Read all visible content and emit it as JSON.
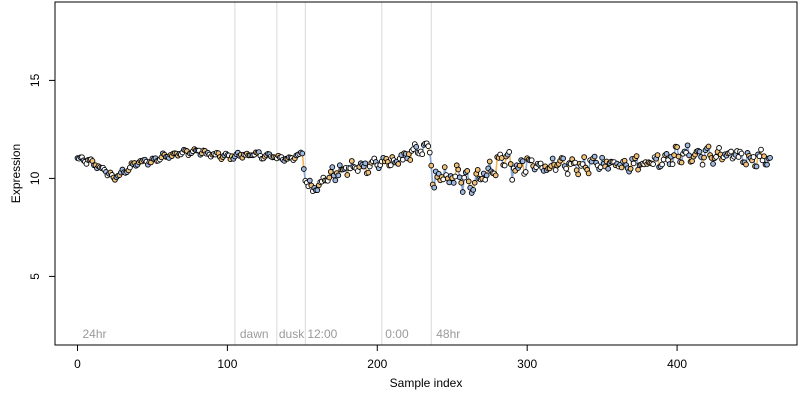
{
  "chart_data": {
    "type": "scatter",
    "xlabel": "Sample index",
    "ylabel": "Expression",
    "xlim": [
      -15,
      480
    ],
    "ylim": [
      1.5,
      19
    ],
    "x_ticks": [
      0,
      100,
      200,
      300,
      400
    ],
    "y_ticks": [
      5,
      10,
      15
    ],
    "vlines": [
      105,
      133,
      152,
      203,
      236
    ],
    "annotations": [
      {
        "x": 2,
        "text": "24hr"
      },
      {
        "x": 107,
        "text": "dawn"
      },
      {
        "x": 133,
        "text": "dusk"
      },
      {
        "x": 152,
        "text": "12:00"
      },
      {
        "x": 204,
        "text": "0:00"
      },
      {
        "x": 238,
        "text": "48hr"
      }
    ],
    "n_points": 463,
    "colors": {
      "point_fill_a": "#f2c27a",
      "point_fill_b": "#9fb9e0",
      "point_fill_c": "#ffffff",
      "point_stroke": "#000000",
      "segment_orange": "#f0a030",
      "segment_blue": "#6f95cf",
      "vline": "#d9d9d9"
    },
    "profile": [
      [
        0,
        11.0
      ],
      [
        10,
        10.8
      ],
      [
        20,
        10.3
      ],
      [
        25,
        10.0
      ],
      [
        30,
        10.3
      ],
      [
        40,
        10.8
      ],
      [
        50,
        10.9
      ],
      [
        60,
        11.2
      ],
      [
        70,
        11.3
      ],
      [
        80,
        11.4
      ],
      [
        90,
        11.2
      ],
      [
        100,
        11.1
      ],
      [
        110,
        11.2
      ],
      [
        120,
        11.2
      ],
      [
        130,
        11.1
      ],
      [
        140,
        11.0
      ],
      [
        150,
        11.2
      ],
      [
        152,
        10.1
      ],
      [
        155,
        9.5
      ],
      [
        160,
        9.7
      ],
      [
        170,
        10.2
      ],
      [
        180,
        10.5
      ],
      [
        190,
        10.6
      ],
      [
        200,
        10.8
      ],
      [
        210,
        10.8
      ],
      [
        220,
        11.2
      ],
      [
        230,
        11.4
      ],
      [
        235,
        11.7
      ],
      [
        237,
        9.6
      ],
      [
        240,
        10.0
      ],
      [
        250,
        10.1
      ],
      [
        260,
        9.8
      ],
      [
        270,
        10.2
      ],
      [
        280,
        10.6
      ],
      [
        285,
        11.3
      ],
      [
        290,
        10.4
      ],
      [
        300,
        10.7
      ],
      [
        320,
        10.6
      ],
      [
        340,
        10.7
      ],
      [
        360,
        10.8
      ],
      [
        380,
        10.8
      ],
      [
        400,
        11.2
      ],
      [
        420,
        11.2
      ],
      [
        440,
        11.1
      ],
      [
        462,
        11.0
      ]
    ],
    "noise": [
      [
        0,
        0.15
      ],
      [
        150,
        0.15
      ],
      [
        152,
        0.35
      ],
      [
        236,
        0.35
      ],
      [
        237,
        0.6
      ],
      [
        300,
        0.6
      ],
      [
        301,
        0.4
      ],
      [
        462,
        0.4
      ]
    ]
  }
}
